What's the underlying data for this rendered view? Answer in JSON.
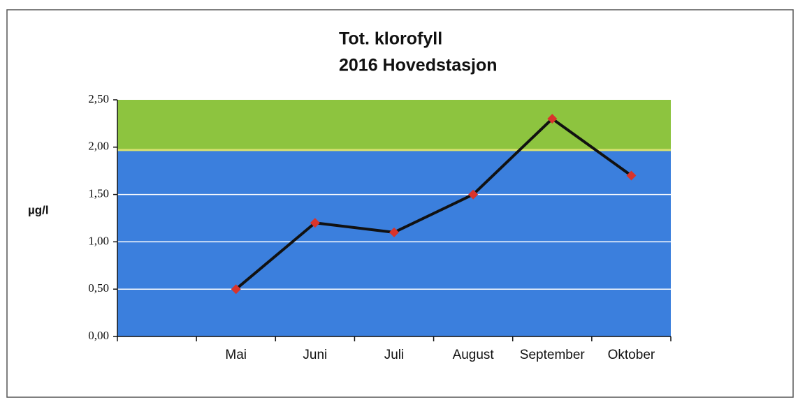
{
  "chart_data": {
    "type": "line",
    "title": "Tot. klorofyll",
    "subtitle": "2016 Hovedstasjon",
    "y_label": "µg/l",
    "categories": [
      null,
      "Mai",
      "Juni",
      "Juli",
      "August",
      "September",
      "Oktober"
    ],
    "series": [
      {
        "name": "Tot. klorofyll",
        "color": "#111111",
        "marker_color": "#d9342b",
        "values": [
          null,
          0.5,
          1.2,
          1.1,
          1.5,
          2.3,
          1.7
        ]
      }
    ],
    "bands": [
      {
        "from": 0,
        "to": 1.97,
        "color": "#3b7fdd"
      },
      {
        "from": 1.97,
        "to": 2.5,
        "color": "#8dc43f"
      }
    ],
    "ylim": [
      0,
      2.5
    ],
    "yticks": [
      {
        "value": 0,
        "label": "0,00"
      },
      {
        "value": 0.5,
        "label": "0,50"
      },
      {
        "value": 1,
        "label": "1,00"
      },
      {
        "value": 1.5,
        "label": "1,50"
      },
      {
        "value": 2,
        "label": "2,00"
      },
      {
        "value": 2.5,
        "label": "2,50"
      }
    ],
    "grid": true,
    "grid_color": "#ffffff"
  }
}
